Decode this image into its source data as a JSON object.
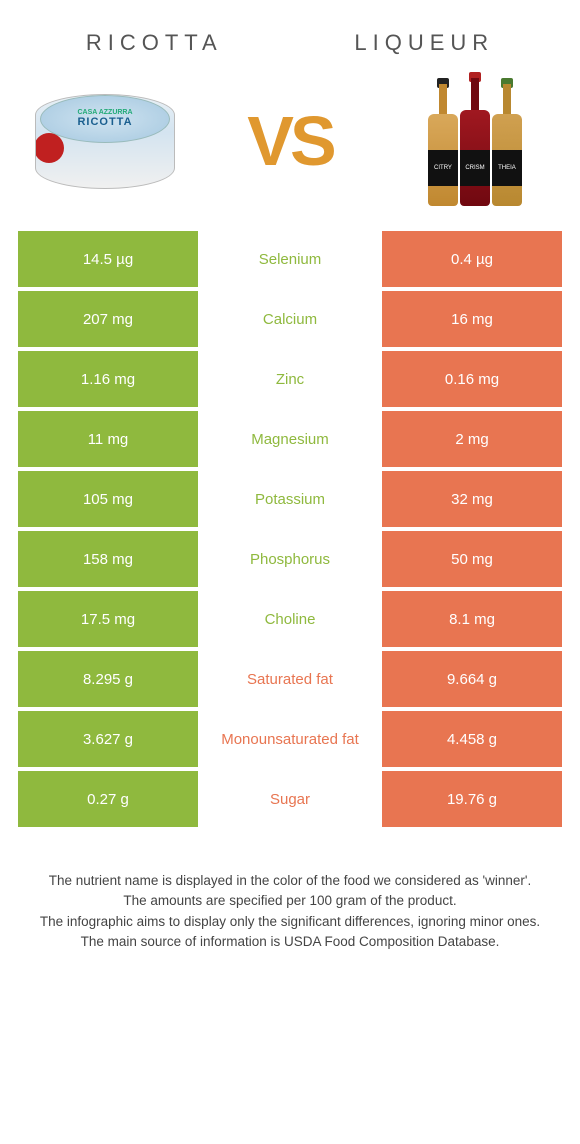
{
  "header": {
    "left_title": "Ricotta",
    "right_title": "Liqueur",
    "vs_text": "VS"
  },
  "colors": {
    "left": "#8fb93e",
    "right": "#e87551",
    "row_gap": 4
  },
  "bottles": [
    {
      "label": "CITRY"
    },
    {
      "label": "CRISM"
    },
    {
      "label": "THEIA"
    }
  ],
  "rows": [
    {
      "left": "14.5 µg",
      "name": "Selenium",
      "right": "0.4 µg",
      "winner": "left"
    },
    {
      "left": "207 mg",
      "name": "Calcium",
      "right": "16 mg",
      "winner": "left"
    },
    {
      "left": "1.16 mg",
      "name": "Zinc",
      "right": "0.16 mg",
      "winner": "left"
    },
    {
      "left": "11 mg",
      "name": "Magnesium",
      "right": "2 mg",
      "winner": "left"
    },
    {
      "left": "105 mg",
      "name": "Potassium",
      "right": "32 mg",
      "winner": "left"
    },
    {
      "left": "158 mg",
      "name": "Phosphorus",
      "right": "50 mg",
      "winner": "left"
    },
    {
      "left": "17.5 mg",
      "name": "Choline",
      "right": "8.1 mg",
      "winner": "left"
    },
    {
      "left": "8.295 g",
      "name": "Saturated fat",
      "right": "9.664 g",
      "winner": "right"
    },
    {
      "left": "3.627 g",
      "name": "Monounsaturated fat",
      "right": "4.458 g",
      "winner": "right"
    },
    {
      "left": "0.27 g",
      "name": "Sugar",
      "right": "19.76 g",
      "winner": "right"
    }
  ],
  "footer": {
    "line1": "The nutrient name is displayed in the color of the food we considered as 'winner'.",
    "line2": "The amounts are specified per 100 gram of the product.",
    "line3": "The infographic aims to display only the significant differences, ignoring minor ones.",
    "line4": "The main source of information is USDA Food Composition Database."
  }
}
